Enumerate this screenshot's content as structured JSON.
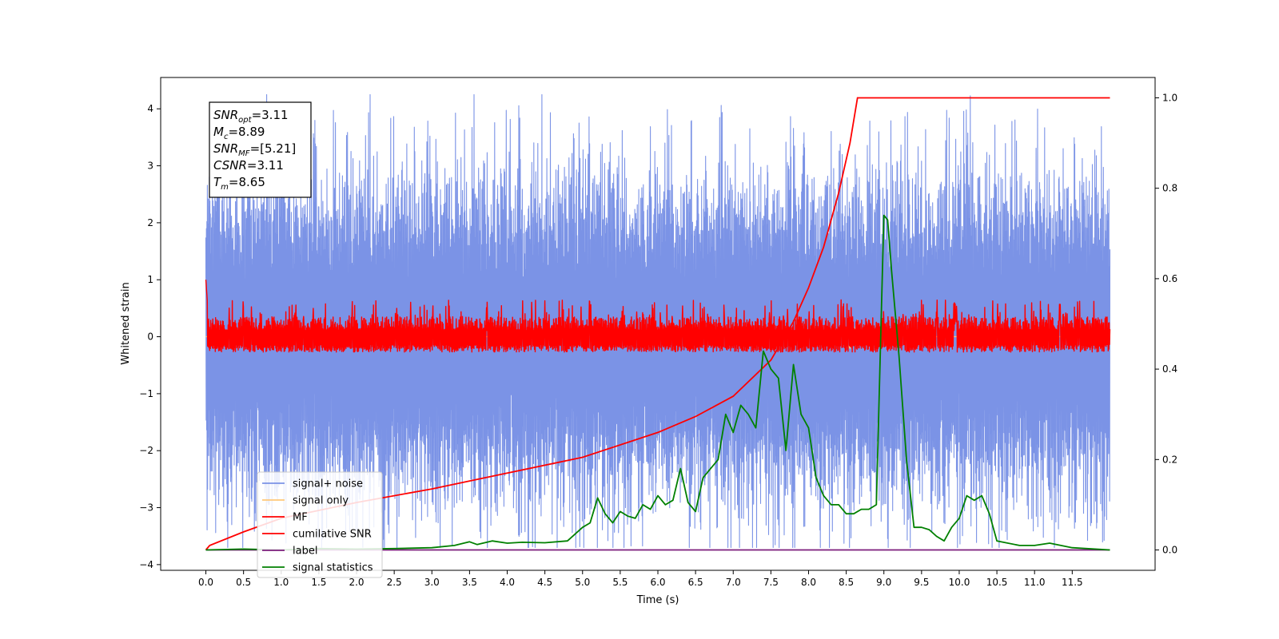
{
  "chart_data": {
    "type": "line",
    "xlabel": "Time (s)",
    "ylabel": "Whitened strain",
    "xlim": [
      -0.6,
      12.6
    ],
    "ylim": [
      -4.1,
      4.55
    ],
    "y2lim": [
      -0.045,
      1.045
    ],
    "x_ticks": [
      "0.0",
      "0.5",
      "1.0",
      "1.5",
      "2.0",
      "2.5",
      "3.0",
      "3.5",
      "4.0",
      "4.5",
      "5.0",
      "5.5",
      "6.0",
      "6.5",
      "7.0",
      "7.5",
      "8.0",
      "8.5",
      "9.0",
      "9.5",
      "10.0",
      "10.5",
      "11.0",
      "11.5"
    ],
    "y_ticks": [
      "4",
      "3",
      "2",
      "1",
      "0",
      "−1",
      "−2",
      "−3",
      "−4"
    ],
    "y2_ticks": [
      "1.0",
      "0.8",
      "0.6",
      "0.4",
      "0.2",
      "0.0"
    ],
    "annotation": {
      "lines": [
        {
          "base": "SNR",
          "sub": "opt",
          "rest": "=3.11"
        },
        {
          "base": "M",
          "sub": "c",
          "rest": "=8.89"
        },
        {
          "base": "SNR",
          "sub": "MF",
          "rest": "=[5.21]"
        },
        {
          "base": "CSNR",
          "sub": "",
          "rest": "=3.11"
        },
        {
          "base": "T",
          "sub": "m",
          "rest": "=8.65"
        }
      ]
    },
    "legend": {
      "position": "lower-left",
      "entries": [
        {
          "label": "signal+ noise",
          "color": "#7b93e6"
        },
        {
          "label": "signal only",
          "color": "#ffc87a"
        },
        {
          "label": "MF",
          "color": "#ff0000"
        },
        {
          "label": "cumilative SNR",
          "color": "#ff0000"
        },
        {
          "label": "label",
          "color": "#7b1d7b"
        },
        {
          "label": "signal statistics",
          "color": "#008000"
        }
      ]
    },
    "series": [
      {
        "name": "signal+ noise",
        "axis": "left",
        "color": "#7b93e6",
        "t_range": [
          0,
          12
        ],
        "band_low": -1.75,
        "band_high": 1.75,
        "typical_peak_high": 3.2,
        "typical_peak_low": -3.0
      },
      {
        "name": "signal only",
        "axis": "left",
        "color": "#ffc87a",
        "x": [
          0,
          8.0,
          8.4,
          8.55,
          8.65,
          8.7,
          12
        ],
        "y": [
          0,
          0,
          0.1,
          -0.2,
          0.3,
          0,
          0
        ]
      },
      {
        "name": "MF",
        "axis": "left",
        "color": "#ff0000",
        "t_range": [
          0,
          12
        ],
        "band_low": -0.27,
        "band_high": 0.35,
        "typical_peak": 0.6
      },
      {
        "name": "cumilative SNR",
        "axis": "right",
        "color": "#ff0000",
        "x": [
          0.0,
          0.05,
          0.5,
          1.0,
          2.0,
          3.0,
          4.0,
          5.0,
          6.0,
          6.5,
          7.0,
          7.5,
          7.8,
          8.0,
          8.2,
          8.4,
          8.55,
          8.65,
          12.0
        ],
        "y": [
          0.0,
          0.01,
          0.04,
          0.07,
          0.105,
          0.135,
          0.17,
          0.205,
          0.26,
          0.295,
          0.34,
          0.42,
          0.505,
          0.58,
          0.67,
          0.79,
          0.9,
          1.0,
          1.0
        ]
      },
      {
        "name": "label",
        "axis": "right",
        "color": "#7b1d7b",
        "x": [
          0.0,
          12.0
        ],
        "y": [
          0.0,
          0.0
        ]
      },
      {
        "name": "signal statistics",
        "axis": "right",
        "color": "#008000",
        "x": [
          0.0,
          0.5,
          1.0,
          1.5,
          2.0,
          2.5,
          3.0,
          3.3,
          3.5,
          3.6,
          3.8,
          4.0,
          4.2,
          4.5,
          4.8,
          5.0,
          5.1,
          5.2,
          5.3,
          5.4,
          5.5,
          5.6,
          5.7,
          5.8,
          5.9,
          6.0,
          6.1,
          6.2,
          6.3,
          6.4,
          6.5,
          6.6,
          6.7,
          6.8,
          6.9,
          7.0,
          7.1,
          7.2,
          7.3,
          7.4,
          7.5,
          7.6,
          7.7,
          7.8,
          7.9,
          8.0,
          8.1,
          8.2,
          8.3,
          8.4,
          8.5,
          8.6,
          8.7,
          8.8,
          8.9,
          9.0,
          9.05,
          9.1,
          9.2,
          9.3,
          9.4,
          9.5,
          9.6,
          9.7,
          9.8,
          9.9,
          10.0,
          10.1,
          10.2,
          10.3,
          10.4,
          10.5,
          10.8,
          11.0,
          11.2,
          11.5,
          12.0
        ],
        "y": [
          0.0,
          0.002,
          0.0,
          0.003,
          0.002,
          0.003,
          0.005,
          0.01,
          0.018,
          0.012,
          0.02,
          0.015,
          0.017,
          0.016,
          0.02,
          0.05,
          0.06,
          0.115,
          0.08,
          0.06,
          0.085,
          0.075,
          0.07,
          0.1,
          0.09,
          0.12,
          0.1,
          0.11,
          0.18,
          0.105,
          0.085,
          0.16,
          0.18,
          0.2,
          0.3,
          0.26,
          0.32,
          0.3,
          0.27,
          0.44,
          0.4,
          0.38,
          0.22,
          0.41,
          0.3,
          0.27,
          0.16,
          0.12,
          0.1,
          0.1,
          0.08,
          0.08,
          0.09,
          0.09,
          0.1,
          0.74,
          0.73,
          0.62,
          0.43,
          0.2,
          0.05,
          0.05,
          0.045,
          0.03,
          0.02,
          0.05,
          0.07,
          0.12,
          0.11,
          0.12,
          0.08,
          0.02,
          0.01,
          0.01,
          0.015,
          0.005,
          0.0
        ]
      }
    ]
  }
}
